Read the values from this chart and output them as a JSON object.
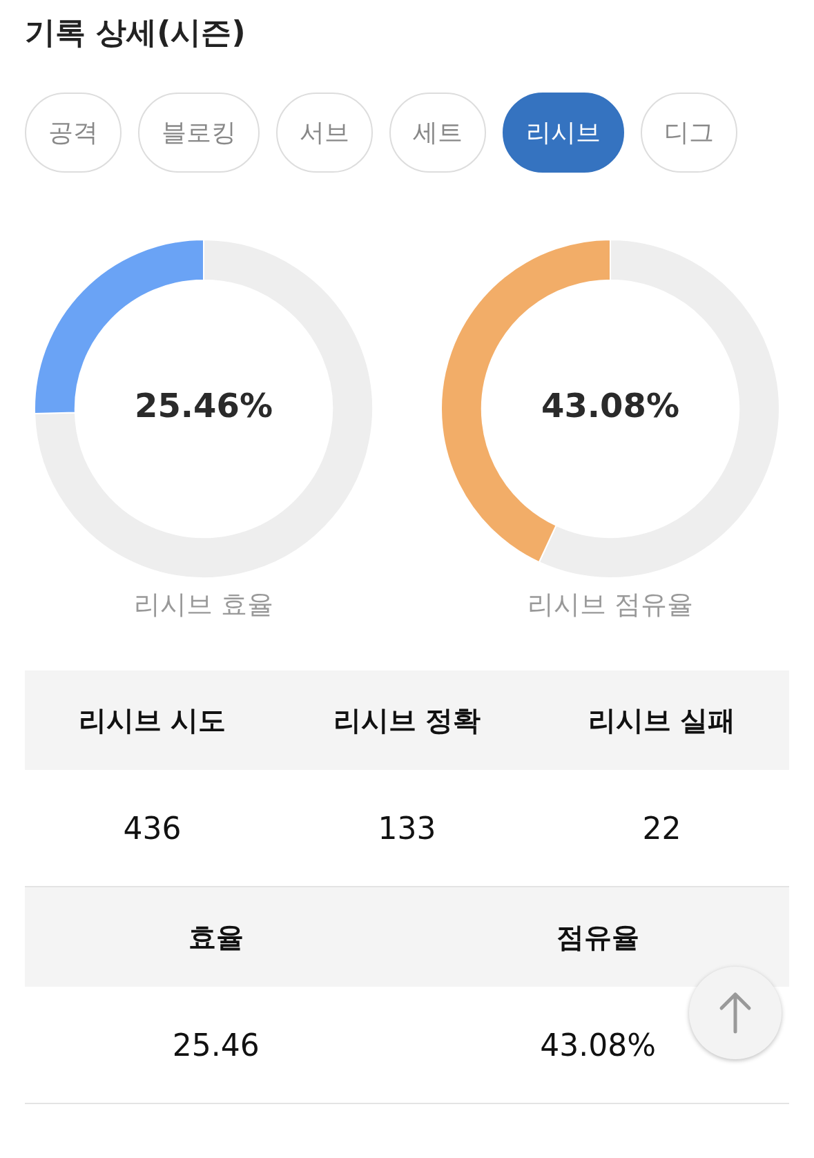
{
  "chart_data": [
    {
      "type": "other",
      "title": "기록 상세(시즌)",
      "categories": [
        "공격",
        "블로킹",
        "서브",
        "세트",
        "리시브",
        "디그"
      ],
      "colors": [
        "#ffffff",
        "#ffffff",
        "#ffffff",
        "#ffffff",
        "#3573c0",
        "#ffffff"
      ]
    },
    {
      "type": "donut",
      "title": "리시브 효율",
      "categories": [
        null,
        null
      ],
      "values": [
        25.46,
        74.54
      ],
      "colors": [
        "#6aa3f5",
        "#eeeeee"
      ],
      "value_labels": [
        "25.46%",
        null
      ]
    },
    {
      "type": "donut",
      "title": "리시브 점유율",
      "categories": [
        null,
        null
      ],
      "values": [
        43.08,
        56.92
      ],
      "colors": [
        "#f2ad68",
        "#eeeeee"
      ],
      "value_labels": [
        "43.08%",
        null
      ]
    },
    {
      "type": "other",
      "categories": [
        "리시브 시도",
        "리시브 정확",
        "리시브 실패"
      ],
      "value_labels": [
        "436",
        "133",
        "22"
      ]
    },
    {
      "type": "other",
      "categories": [
        "효율",
        "점유율"
      ],
      "value_labels": [
        "25.46",
        "43.08%"
      ]
    }
  ]
}
